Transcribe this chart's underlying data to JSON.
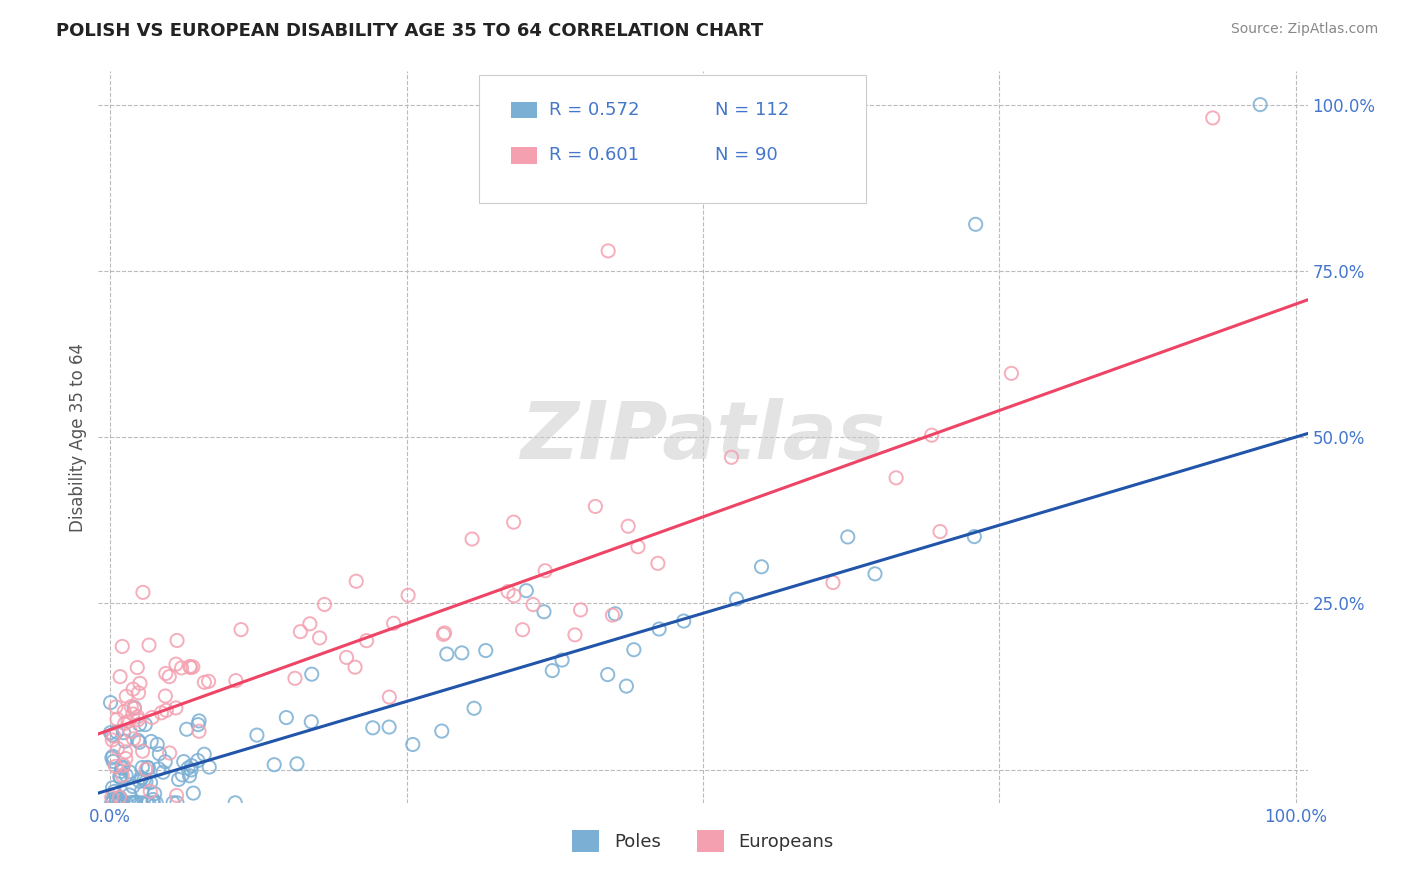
{
  "title": "POLISH VS EUROPEAN DISABILITY AGE 35 TO 64 CORRELATION CHART",
  "source_text": "Source: ZipAtlas.com",
  "ylabel": "Disability Age 35 to 64",
  "xlabel": "",
  "watermark": "ZIPatlas",
  "poles_R": 0.572,
  "poles_N": 112,
  "euros_R": 0.601,
  "euros_N": 90,
  "xlim": [
    -0.01,
    1.01
  ],
  "ylim": [
    -0.05,
    1.05
  ],
  "xticks": [
    0.0,
    0.25,
    0.5,
    0.75,
    1.0
  ],
  "yticks": [
    0.0,
    0.25,
    0.5,
    0.75,
    1.0
  ],
  "xtick_labels": [
    "0.0%",
    "",
    "",
    "",
    "100.0%"
  ],
  "ytick_labels": [
    "",
    "25.0%",
    "50.0%",
    "75.0%",
    "100.0%"
  ],
  "poles_color": "#7BAFD4",
  "euros_color": "#F4A0B0",
  "poles_line_color": "#2255AA",
  "euros_line_color": "#EE4466",
  "grid_color": "#BBBBBB",
  "background_color": "#FFFFFF",
  "title_color": "#222222",
  "axis_label_color": "#555555",
  "tick_label_color": "#4477CC",
  "poles_intercept": -0.03,
  "poles_slope": 0.53,
  "euros_intercept": 0.06,
  "euros_slope": 0.64
}
